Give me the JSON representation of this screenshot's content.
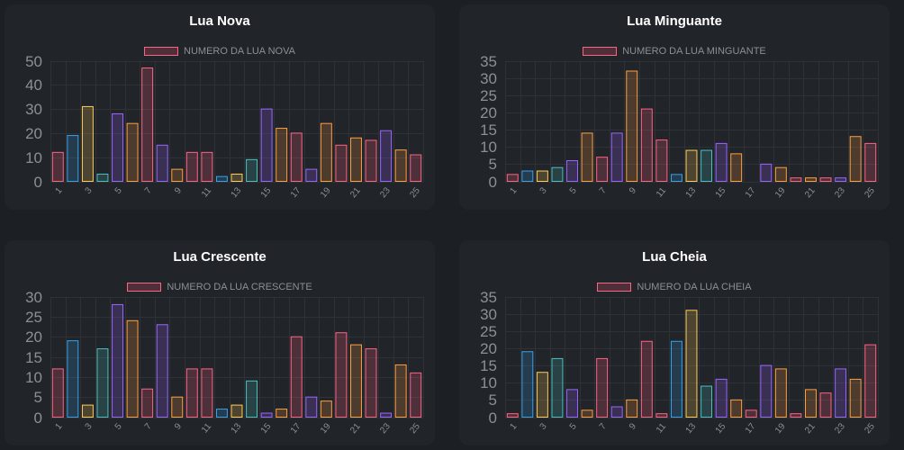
{
  "colors": {
    "background": "#1c1f24",
    "panel": "#212429",
    "title": "#ffffff",
    "axis_text": "#8c8f94",
    "grid": "#2e3136",
    "legend_box": "#ff6384"
  },
  "bar_colors": [
    "#ff6384",
    "#36a2eb",
    "#ffcd56",
    "#4bc0c0",
    "#9966ff",
    "#ff9f40",
    "#ff6384",
    "#9966ff",
    "#ff9f40",
    "#ff6384",
    "#ff6384",
    "#36a2eb",
    "#ffcd56",
    "#4bc0c0",
    "#9966ff",
    "#ff9f40",
    "#ff6384",
    "#9966ff",
    "#ff9f40",
    "#ff6384",
    "#ff9f40",
    "#ff6384",
    "#9966ff",
    "#ff9f40",
    "#ff6384"
  ],
  "chart_data": [
    {
      "type": "bar",
      "title": "Lua Nova",
      "legend": "NUMERO DA LUA NOVA",
      "categories": [
        1,
        2,
        3,
        4,
        5,
        6,
        7,
        8,
        9,
        10,
        11,
        12,
        13,
        14,
        15,
        16,
        17,
        18,
        19,
        20,
        21,
        22,
        23,
        24,
        25
      ],
      "x_tick_labels": [
        "1",
        "3",
        "5",
        "7",
        "9",
        "11",
        "13",
        "15",
        "17",
        "19",
        "21",
        "23",
        "25"
      ],
      "values": [
        12,
        19,
        31,
        3,
        28,
        24,
        47,
        15,
        5,
        12,
        12,
        2,
        3,
        9,
        30,
        22,
        20,
        5,
        24,
        15,
        18,
        17,
        21,
        13,
        11
      ],
      "ylim": [
        0,
        50
      ],
      "yticks": [
        0,
        10,
        20,
        30,
        40,
        50
      ]
    },
    {
      "type": "bar",
      "title": "Lua Minguante",
      "legend": "NUMERO DA LUA MINGUANTE",
      "categories": [
        1,
        2,
        3,
        4,
        5,
        6,
        7,
        8,
        9,
        10,
        11,
        12,
        13,
        14,
        15,
        16,
        17,
        18,
        19,
        20,
        21,
        22,
        23,
        24,
        25
      ],
      "x_tick_labels": [
        "1",
        "3",
        "5",
        "7",
        "9",
        "11",
        "13",
        "15",
        "17",
        "19",
        "21",
        "23",
        "25"
      ],
      "values": [
        2,
        3,
        3,
        4,
        6,
        14,
        7,
        14,
        32,
        21,
        12,
        2,
        9,
        9,
        11,
        8,
        0,
        5,
        4,
        1,
        1,
        1,
        1,
        13,
        11
      ],
      "ylim": [
        0,
        35
      ],
      "yticks": [
        0,
        5,
        10,
        15,
        20,
        25,
        30,
        35
      ]
    },
    {
      "type": "bar",
      "title": "Lua Crescente",
      "legend": "NUMERO DA LUA CRESCENTE",
      "categories": [
        1,
        2,
        3,
        4,
        5,
        6,
        7,
        8,
        9,
        10,
        11,
        12,
        13,
        14,
        15,
        16,
        17,
        18,
        19,
        20,
        21,
        22,
        23,
        24,
        25
      ],
      "x_tick_labels": [
        "1",
        "3",
        "5",
        "7",
        "9",
        "11",
        "13",
        "15",
        "17",
        "19",
        "21",
        "23",
        "25"
      ],
      "values": [
        12,
        19,
        3,
        17,
        28,
        24,
        7,
        23,
        5,
        12,
        12,
        2,
        3,
        9,
        1,
        2,
        20,
        5,
        4,
        21,
        18,
        17,
        1,
        13,
        11
      ],
      "ylim": [
        0,
        30
      ],
      "yticks": [
        0,
        5,
        10,
        15,
        20,
        25,
        30
      ]
    },
    {
      "type": "bar",
      "title": "Lua Cheia",
      "legend": "NUMERO DA LUA CHEIA",
      "categories": [
        1,
        2,
        3,
        4,
        5,
        6,
        7,
        8,
        9,
        10,
        11,
        12,
        13,
        14,
        15,
        16,
        17,
        18,
        19,
        20,
        21,
        22,
        23,
        24,
        25
      ],
      "x_tick_labels": [
        "1",
        "3",
        "5",
        "7",
        "9",
        "11",
        "13",
        "15",
        "17",
        "19",
        "21",
        "23",
        "25"
      ],
      "values": [
        1,
        19,
        13,
        17,
        8,
        2,
        17,
        3,
        5,
        22,
        1,
        22,
        31,
        9,
        11,
        5,
        2,
        15,
        14,
        1,
        8,
        7,
        14,
        11,
        21
      ],
      "ylim": [
        0,
        35
      ],
      "yticks": [
        0,
        5,
        10,
        15,
        20,
        25,
        30,
        35
      ]
    }
  ]
}
